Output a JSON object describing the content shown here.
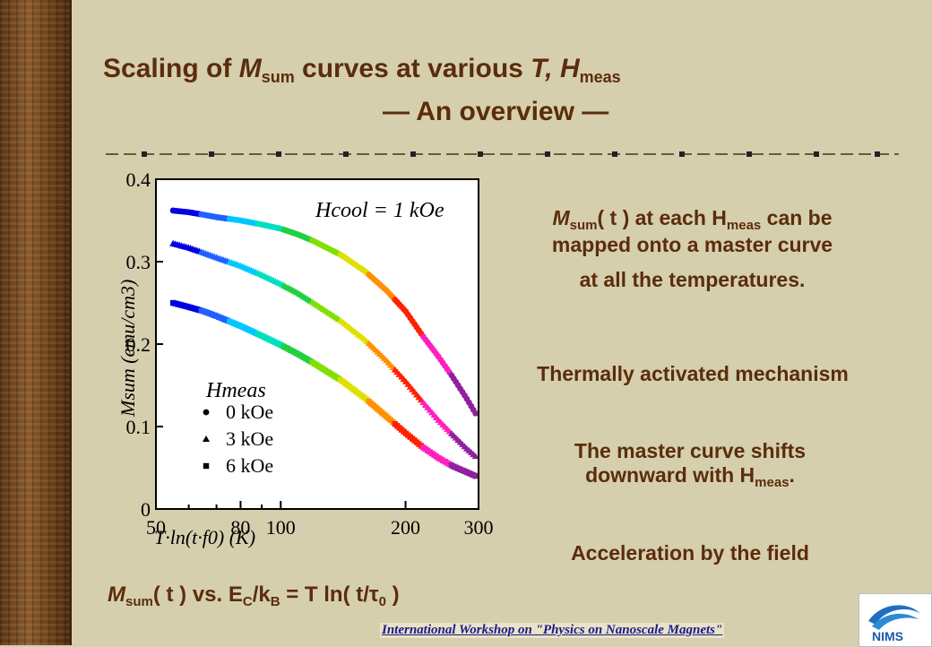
{
  "title": {
    "line1_pre": "Scaling of ",
    "line1_M": "M",
    "line1_sub": "sum",
    "line1_mid": " curves at various ",
    "line1_T": "T, H",
    "line1_sub2": "meas",
    "line2": "— An overview —"
  },
  "right_text": {
    "p1_M": "M",
    "p1_sub": "sum",
    "p1_rest": "( t )  at each H",
    "p1_sub2": "meas",
    "p1_end": " can be",
    "p1_line2": "mapped onto a master curve",
    "p1_line3": "at all the temperatures.",
    "p2": "Thermally activated mechanism",
    "p3_line1": "The master curve shifts",
    "p3_line2_pre": "downward with H",
    "p3_line2_sub": "meas",
    "p3_line2_end": ".",
    "p4": "Acceleration by the field"
  },
  "formula": {
    "M": "M",
    "sub1": "sum",
    "mid": "( t ) vs. E",
    "sub2": "C",
    "slash": "/k",
    "sub3": "B",
    "rest": " = T ln( t/τ",
    "sub4": "0",
    "end": " )"
  },
  "footer": "International Workshop on \"Physics on Nanoscale Magnets\"",
  "logo_text": "NIMS",
  "chart_data": {
    "type": "scatter",
    "xscale": "log",
    "xlim": [
      50,
      300
    ],
    "ylim": [
      0,
      0.4
    ],
    "xticks": [
      "50",
      "80",
      "100",
      "200",
      "300"
    ],
    "yticks": [
      "0",
      "0.1",
      "0.2",
      "0.3",
      "0.4"
    ],
    "xlabel": "T·ln(t·f0)   (K)",
    "ylabel": "Msum (emu/cm3)",
    "annotation": "Hcool = 1 kOe",
    "legend_title": "Hmeas",
    "legend_position": "bottom-left",
    "series": [
      {
        "name": "0 kOe",
        "marker": "circle",
        "x": [
          55,
          60,
          65,
          70,
          80,
          90,
          100,
          110,
          120,
          140,
          160,
          180,
          200,
          220,
          240,
          260,
          280,
          295
        ],
        "y": [
          0.362,
          0.36,
          0.357,
          0.354,
          0.35,
          0.345,
          0.34,
          0.333,
          0.325,
          0.308,
          0.288,
          0.265,
          0.24,
          0.21,
          0.185,
          0.16,
          0.135,
          0.116
        ]
      },
      {
        "name": "3 kOe",
        "marker": "triangle",
        "x": [
          55,
          60,
          65,
          70,
          80,
          90,
          100,
          110,
          120,
          140,
          160,
          180,
          200,
          220,
          240,
          260,
          280,
          295
        ],
        "y": [
          0.322,
          0.317,
          0.311,
          0.305,
          0.295,
          0.284,
          0.273,
          0.262,
          0.25,
          0.228,
          0.205,
          0.18,
          0.155,
          0.13,
          0.108,
          0.09,
          0.074,
          0.064
        ]
      },
      {
        "name": "6 kOe",
        "marker": "square",
        "x": [
          55,
          60,
          65,
          70,
          80,
          90,
          100,
          110,
          120,
          140,
          160,
          180,
          200,
          220,
          240,
          260,
          280,
          295
        ],
        "y": [
          0.25,
          0.245,
          0.24,
          0.234,
          0.222,
          0.21,
          0.199,
          0.188,
          0.177,
          0.156,
          0.134,
          0.112,
          0.092,
          0.075,
          0.062,
          0.052,
          0.045,
          0.04
        ]
      }
    ],
    "rainbow_colors": [
      "#0000e0",
      "#2060ff",
      "#00c8ff",
      "#00e0c0",
      "#20d040",
      "#80e000",
      "#e0e000",
      "#ff9000",
      "#ff2000",
      "#ff20c0",
      "#9020a0"
    ]
  }
}
